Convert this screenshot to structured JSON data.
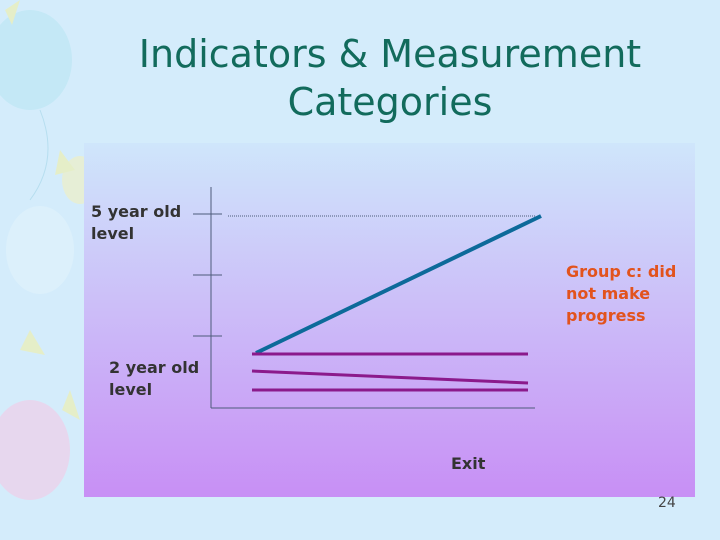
{
  "title": [
    "Indicators & Measurement",
    "Categories"
  ],
  "labels": {
    "top_level": [
      "5 year old",
      "level"
    ],
    "group": [
      "Group c: did",
      "not make",
      "progress"
    ],
    "bottom_level": [
      "2 year old",
      "level"
    ],
    "exit": "Exit"
  },
  "page_number": "24"
}
